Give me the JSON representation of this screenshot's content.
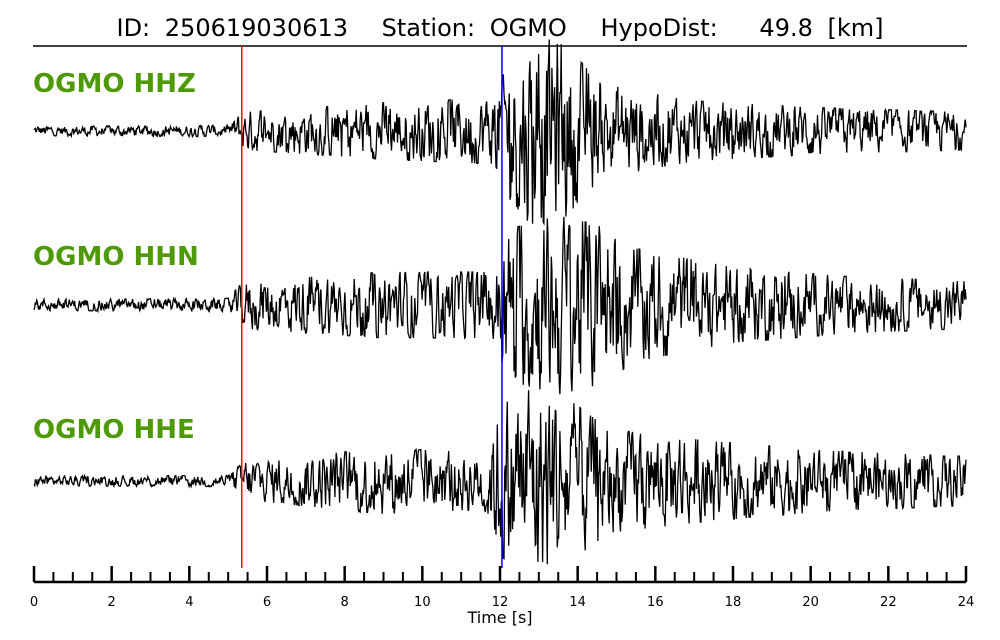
{
  "chart_data": {
    "type": "line",
    "title": {
      "id_label": "ID:",
      "id_value": "250619030613",
      "station_label": "Station:",
      "station_value": "OGMO",
      "hypodist_label": "HypoDist:",
      "hypodist_value": "49.8",
      "hypodist_unit": "[km]"
    },
    "xlabel": "Time [s]",
    "xlim": [
      0,
      24
    ],
    "x_major_ticks": [
      0,
      2,
      4,
      6,
      8,
      10,
      12,
      14,
      16,
      18,
      20,
      22,
      24
    ],
    "x_minor_step": 0.5,
    "label_color": "#4e9a06",
    "trace_color": "#000000",
    "markers": [
      {
        "phase": "P",
        "time": 5.35,
        "color": "#ff0000"
      },
      {
        "phase": "S",
        "time": 12.05,
        "color": "#0000ff"
      }
    ],
    "series": [
      {
        "name": "OGMO HHZ",
        "envelope": [
          [
            0,
            0.05
          ],
          [
            5.0,
            0.06
          ],
          [
            5.4,
            0.2
          ],
          [
            9,
            0.3
          ],
          [
            11.8,
            0.35
          ],
          [
            12.2,
            0.7
          ],
          [
            12.8,
            1.0
          ],
          [
            13.6,
            0.95
          ],
          [
            14.6,
            0.5
          ],
          [
            17,
            0.32
          ],
          [
            20,
            0.25
          ],
          [
            24,
            0.2
          ]
        ]
      },
      {
        "name": "OGMO HHN",
        "envelope": [
          [
            0,
            0.06
          ],
          [
            5.0,
            0.07
          ],
          [
            5.4,
            0.25
          ],
          [
            9,
            0.35
          ],
          [
            11.8,
            0.35
          ],
          [
            12.2,
            0.8
          ],
          [
            13.5,
            0.95
          ],
          [
            14.5,
            0.85
          ],
          [
            15.5,
            0.6
          ],
          [
            18,
            0.4
          ],
          [
            21,
            0.3
          ],
          [
            24,
            0.25
          ]
        ]
      },
      {
        "name": "OGMO HHE",
        "envelope": [
          [
            0,
            0.05
          ],
          [
            5.0,
            0.06
          ],
          [
            5.4,
            0.2
          ],
          [
            9,
            0.35
          ],
          [
            11.6,
            0.3
          ],
          [
            12.0,
            0.8
          ],
          [
            12.9,
            1.0
          ],
          [
            13.5,
            0.95
          ],
          [
            14.8,
            0.55
          ],
          [
            17.5,
            0.42
          ],
          [
            20.5,
            0.32
          ],
          [
            24,
            0.26
          ]
        ]
      }
    ]
  }
}
